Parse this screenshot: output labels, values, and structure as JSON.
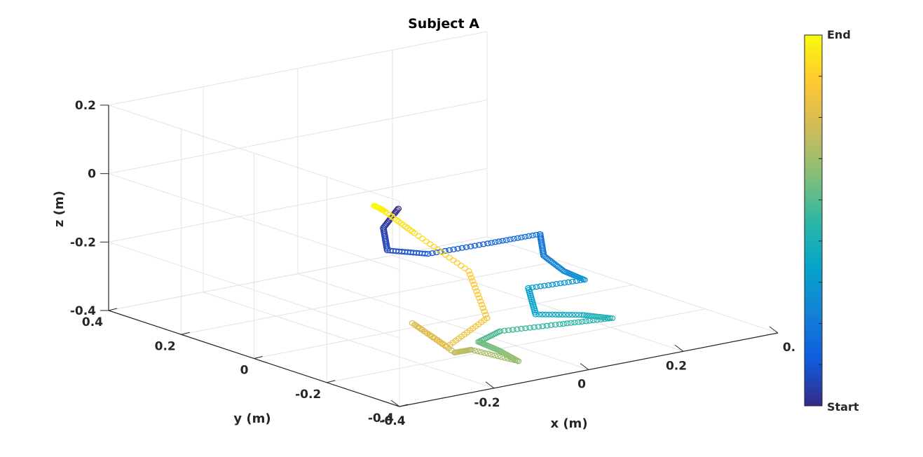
{
  "chart_data": {
    "type": "scatter3d",
    "title": "Subject A",
    "xlabel": "x (m)",
    "ylabel": "y (m)",
    "zlabel": "z (m)",
    "xlim": [
      -0.4,
      0.4
    ],
    "ylim": [
      -0.4,
      0.4
    ],
    "zlim": [
      -0.4,
      0.2
    ],
    "x_ticks": [
      "-0.4",
      "-0.2",
      "0",
      "0.2",
      "0."
    ],
    "y_ticks": [
      "-0.4",
      "-0.2",
      "0",
      "0.2",
      "0.4"
    ],
    "z_ticks": [
      "-0.4",
      "-0.2",
      "0",
      "0.2"
    ],
    "grid": true,
    "marker": "open-circle",
    "colormap": "parula",
    "colormap_stops": [
      "#352a87",
      "#0f5cdd",
      "#1481d6",
      "#06a4ca",
      "#2eb7a4",
      "#87bf77",
      "#d1bb59",
      "#fec832",
      "#f9fb0e"
    ],
    "colorbar": {
      "min_label": "Start",
      "max_label": "End",
      "position": "right"
    },
    "trajectory_keypoints": [
      {
        "x": 0.12,
        "y": 0.28,
        "z": -0.2
      },
      {
        "x": 0.05,
        "y": 0.23,
        "z": -0.22
      },
      {
        "x": 0.02,
        "y": 0.18,
        "z": -0.26
      },
      {
        "x": 0.06,
        "y": 0.12,
        "z": -0.26
      },
      {
        "x": 0.14,
        "y": 0.06,
        "z": -0.23
      },
      {
        "x": 0.22,
        "y": 0.02,
        "z": -0.21
      },
      {
        "x": 0.22,
        "y": 0.01,
        "z": -0.27
      },
      {
        "x": 0.24,
        "y": -0.02,
        "z": -0.31
      },
      {
        "x": 0.26,
        "y": -0.05,
        "z": -0.33
      },
      {
        "x": 0.18,
        "y": 0.0,
        "z": -0.35
      },
      {
        "x": 0.18,
        "y": -0.02,
        "z": -0.42
      },
      {
        "x": 0.24,
        "y": -0.07,
        "z": -0.42
      },
      {
        "x": 0.28,
        "y": -0.1,
        "z": -0.43
      },
      {
        "x": 0.2,
        "y": -0.06,
        "z": -0.44
      },
      {
        "x": 0.12,
        "y": 0.0,
        "z": -0.46
      },
      {
        "x": 0.09,
        "y": 0.02,
        "z": -0.49
      },
      {
        "x": 0.11,
        "y": -0.01,
        "z": -0.51
      },
      {
        "x": 0.12,
        "y": -0.05,
        "z": -0.53
      },
      {
        "x": 0.09,
        "y": 0.04,
        "z": -0.52
      },
      {
        "x": 0.07,
        "y": 0.06,
        "z": -0.53
      },
      {
        "x": 0.05,
        "y": 0.15,
        "z": -0.47
      },
      {
        "x": 0.07,
        "y": 0.08,
        "z": -0.52
      },
      {
        "x": 0.1,
        "y": 0.01,
        "z": -0.42
      },
      {
        "x": 0.1,
        "y": 0.06,
        "z": -0.3
      },
      {
        "x": 0.07,
        "y": 0.17,
        "z": -0.22
      },
      {
        "x": 0.08,
        "y": 0.27,
        "z": -0.19
      },
      {
        "x": 0.1,
        "y": 0.32,
        "z": -0.2
      }
    ]
  }
}
